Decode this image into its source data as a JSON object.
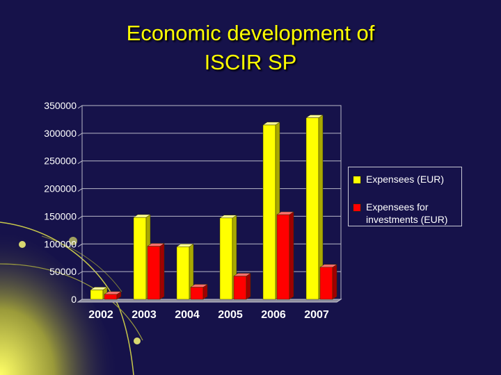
{
  "slide": {
    "title_line1": "Economic development of",
    "title_line2": "ISCIR SP"
  },
  "colors": {
    "background": "#16124a",
    "title": "#ffff00",
    "series1": "#ffff00",
    "series2": "#ff0000",
    "text": "#ffffff"
  },
  "chart_data": {
    "type": "bar",
    "title": "",
    "categories": [
      "2002",
      "2003",
      "2004",
      "2005",
      "2006",
      "2007"
    ],
    "series": [
      {
        "name": "Expensees (EUR)",
        "values": [
          17000,
          148000,
          95000,
          147000,
          315000,
          328000
        ]
      },
      {
        "name": "Expensees for investments (EUR)",
        "values": [
          9000,
          96000,
          22000,
          42000,
          153000,
          58000
        ]
      }
    ],
    "yticks": [
      "0",
      "50000",
      "100000",
      "150000",
      "200000",
      "250000",
      "300000",
      "350000"
    ],
    "ylim": [
      0,
      350000
    ],
    "xlabel": "",
    "ylabel": "",
    "grid": true,
    "legend_position": "right",
    "legend": {
      "item1": "Expensees (EUR)",
      "item2_line1": "Expensees for",
      "item2_line2": "investments (EUR)"
    }
  }
}
